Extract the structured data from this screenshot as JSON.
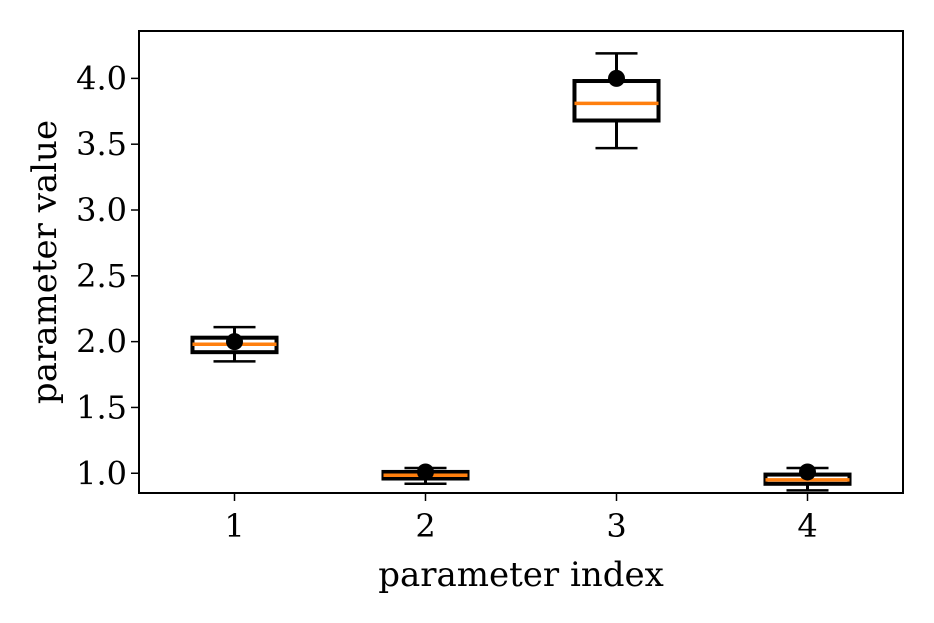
{
  "chart_data": {
    "type": "box",
    "title": "",
    "xlabel": "parameter index",
    "ylabel": "parameter value",
    "categories": [
      "1",
      "2",
      "3",
      "4"
    ],
    "x_tick_labels": [
      "1",
      "2",
      "3",
      "4"
    ],
    "y_tick_labels": [
      "1.0",
      "1.5",
      "2.0",
      "2.5",
      "3.0",
      "3.5",
      "4.0"
    ],
    "y_ticks": [
      1.0,
      1.5,
      2.0,
      2.5,
      3.0,
      3.5,
      4.0
    ],
    "ylim": [
      0.85,
      4.36
    ],
    "grid": false,
    "legend": "none",
    "boxes": [
      {
        "category": "1",
        "whisker_low": 1.85,
        "q1": 1.92,
        "median": 1.98,
        "q3": 2.03,
        "whisker_high": 2.11,
        "marker": 2.0
      },
      {
        "category": "2",
        "whisker_low": 0.92,
        "q1": 0.96,
        "median": 0.985,
        "q3": 1.01,
        "whisker_high": 1.04,
        "marker": 1.01
      },
      {
        "category": "3",
        "whisker_low": 3.47,
        "q1": 3.68,
        "median": 3.81,
        "q3": 3.98,
        "whisker_high": 4.19,
        "marker": 4.0
      },
      {
        "category": "4",
        "whisker_low": 0.87,
        "q1": 0.92,
        "median": 0.95,
        "q3": 0.99,
        "whisker_high": 1.04,
        "marker": 1.01
      }
    ],
    "colors": {
      "box": "#000000",
      "median": "#ff7f0e",
      "marker": "#000000"
    }
  }
}
